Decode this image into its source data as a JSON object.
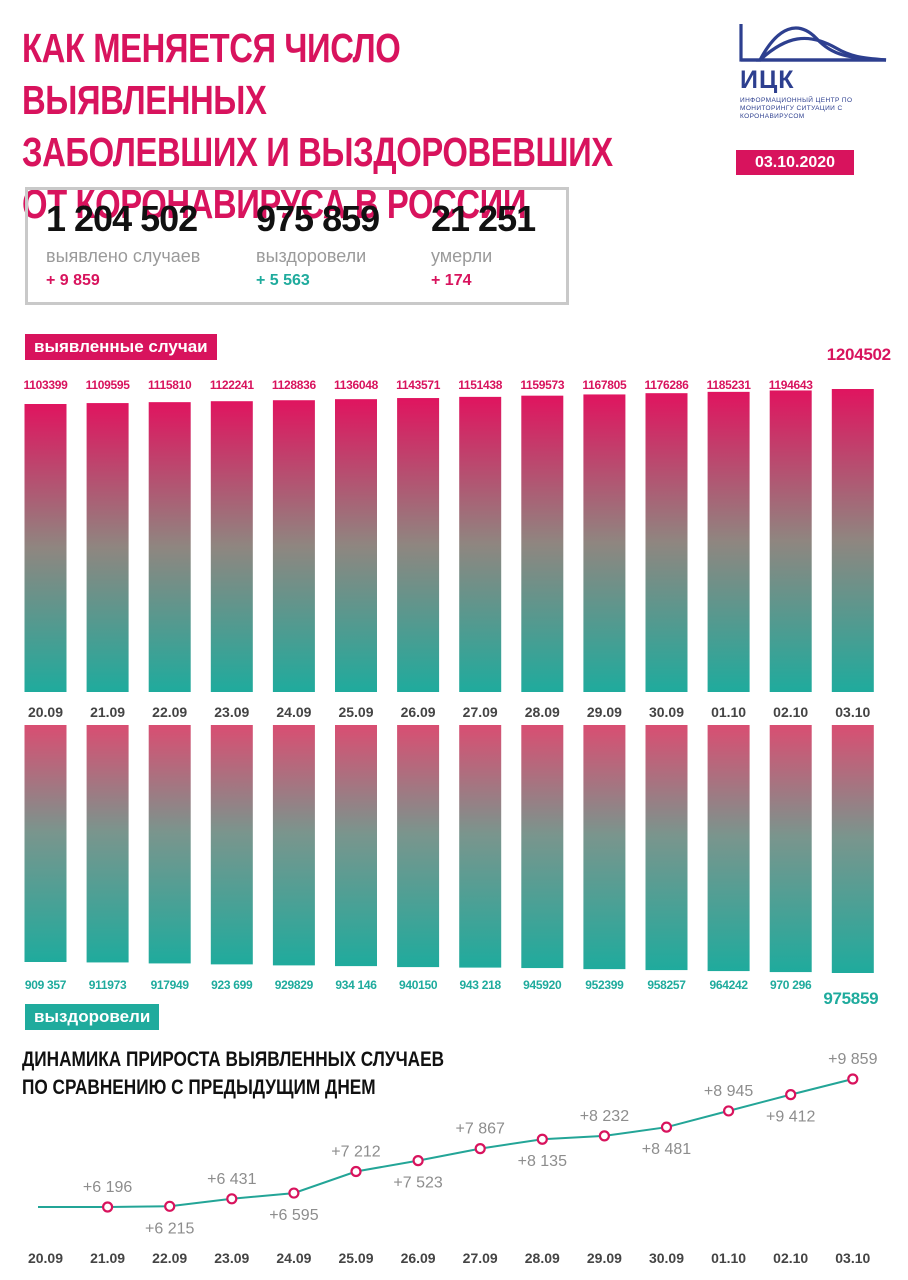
{
  "header": {
    "title_lines": [
      "КАК МЕНЯЕТСЯ ЧИСЛО ВЫЯВЛЕННЫХ",
      "ЗАБОЛЕВШИХ И ВЫЗДОРОВЕВШИХ",
      "ОТ КОРОНАВИРУСА В РОССИИ"
    ],
    "logo_name": "ИЦК",
    "logo_subtitle": "ИНФОРМАЦИОННЫЙ ЦЕНТР ПО МОНИТОРИНГУ СИТУАЦИИ С КОРОНАВИРУСОМ",
    "date": "03.10.2020"
  },
  "colors": {
    "pink": "#d8135d",
    "teal": "#1fab9d",
    "line": "#23a597",
    "dark": "#111111",
    "gray": "#9a9a9a"
  },
  "stats": [
    {
      "value": "1 204 502",
      "label": "выявлено случаев",
      "delta": "+ 9 859",
      "delta_color": "#d8135d"
    },
    {
      "value": "975 859",
      "label": "выздоровели",
      "delta": "+ 5 563",
      "delta_color": "#1fab9d"
    },
    {
      "value": "21 251",
      "label": "умерли",
      "delta": "+ 174",
      "delta_color": "#d8135d"
    }
  ],
  "tags": {
    "cases": "выявленные случаи",
    "recovered": "выздоровели"
  },
  "dynamics_title_lines": [
    "ДИНАМИКА ПРИРОСТА ВЫЯВЛЕННЫХ СЛУЧАЕВ",
    "ПО СРАВНЕНИЮ С ПРЕДЫДУЩИМ ДНЕМ"
  ],
  "chart_data": [
    {
      "type": "bar",
      "categories": [
        "20.09",
        "21.09",
        "22.09",
        "23.09",
        "24.09",
        "25.09",
        "26.09",
        "27.09",
        "28.09",
        "29.09",
        "30.09",
        "01.10",
        "02.10",
        "03.10"
      ],
      "series": [
        {
          "name": "выявленные случаи",
          "values": [
            1103399,
            1109595,
            1115810,
            1122241,
            1128836,
            1136048,
            1143571,
            1151438,
            1159573,
            1167805,
            1176286,
            1185231,
            1194643,
            1204502
          ]
        }
      ],
      "labels": [
        "1103399",
        "1109595",
        "1115810",
        "1122241",
        "1128836",
        "1136048",
        "1143571",
        "1151438",
        "1159573",
        "1167805",
        "1176286",
        "1185231",
        "1194643",
        "1204502"
      ]
    },
    {
      "type": "bar",
      "categories": [
        "20.09",
        "21.09",
        "22.09",
        "23.09",
        "24.09",
        "25.09",
        "26.09",
        "27.09",
        "28.09",
        "29.09",
        "30.09",
        "01.10",
        "02.10",
        "03.10"
      ],
      "series": [
        {
          "name": "выздоровели",
          "values": [
            909357,
            911973,
            917949,
            923699,
            929829,
            934146,
            940150,
            943218,
            945920,
            952399,
            958257,
            964242,
            970296,
            975859
          ]
        }
      ],
      "labels": [
        "909 357",
        "911973",
        "917949",
        "923 699",
        "929829",
        "934 146",
        "940150",
        "943 218",
        "945920",
        "952399",
        "958257",
        "964242",
        "970 296",
        "975859"
      ]
    },
    {
      "type": "line",
      "title": "ДИНАМИКА ПРИРОСТА ВЫЯВЛЕННЫХ СЛУЧАЕВ ПО СРАВНЕНИЮ С ПРЕДЫДУЩИМ ДНЕМ",
      "x": [
        "20.09",
        "21.09",
        "22.09",
        "23.09",
        "24.09",
        "25.09",
        "26.09",
        "27.09",
        "28.09",
        "29.09",
        "30.09",
        "01.10",
        "02.10",
        "03.10"
      ],
      "series": [
        {
          "values": [
            6196,
            6196,
            6215,
            6431,
            6595,
            7212,
            7523,
            7867,
            8135,
            8232,
            8481,
            8945,
            9412,
            9859
          ]
        }
      ],
      "point_labels": [
        "",
        "+6 196",
        "+6 215",
        "+6 431",
        "+6 595",
        "+7 212",
        "+7 523",
        "+7 867",
        "+8 135",
        "+8 232",
        "+8 481",
        "+8 945",
        "+9 412",
        "+9 859"
      ],
      "label_positions": [
        "",
        "above",
        "below",
        "above",
        "below",
        "above",
        "below",
        "above",
        "below",
        "above",
        "below",
        "above",
        "below",
        "above"
      ]
    }
  ]
}
